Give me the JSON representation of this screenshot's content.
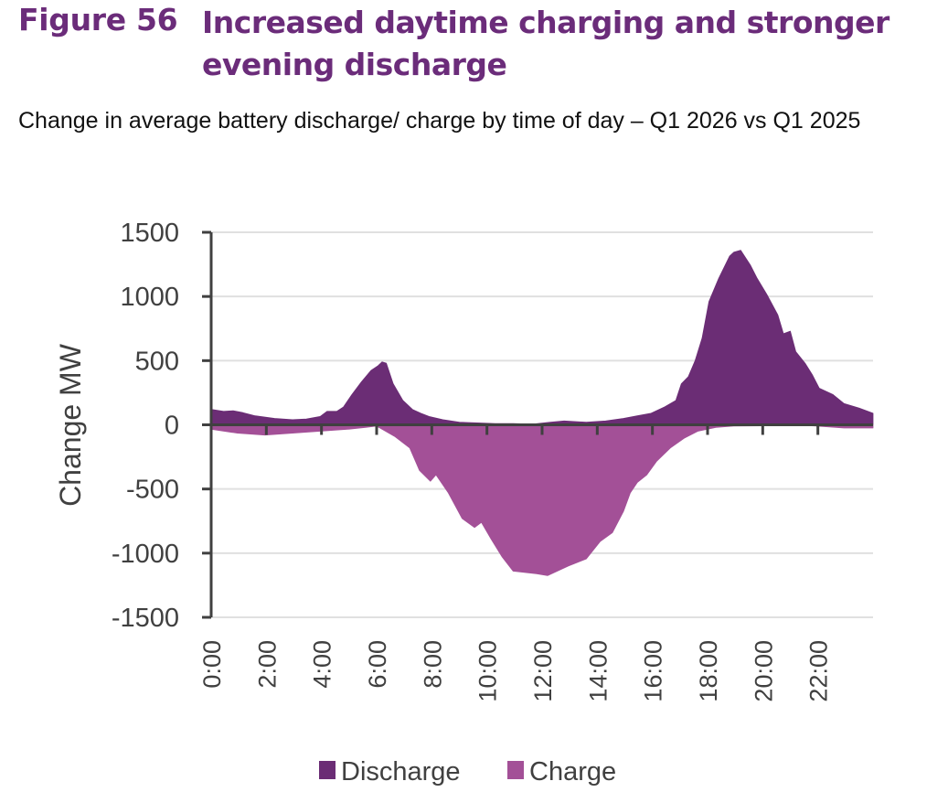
{
  "figure": {
    "number": "Figure 56",
    "title": "Increased daytime charging and stronger evening discharge",
    "subtitle": "Change in average battery discharge/ charge by time of day – Q1 2026 vs Q1 2025"
  },
  "colors": {
    "title": "#6b2c7a",
    "discharge": "#6b2d75",
    "charge": "#a35097",
    "axis": "#404040",
    "grid": "#e0e0e0"
  },
  "chart_data": {
    "type": "area",
    "title": "Change in average battery discharge/ charge by time of day – Q1 2026 vs Q1 2025",
    "xlabel": "",
    "ylabel": "Change MW",
    "xlim": [
      0,
      24
    ],
    "ylim": [
      -1500,
      1500
    ],
    "yticks": [
      1500,
      1000,
      500,
      0,
      -500,
      -1000,
      -1500
    ],
    "ytick_labels": [
      "1500",
      "1000",
      "500",
      "0",
      "-500",
      "-1000",
      "-1500"
    ],
    "xticks": [
      0,
      2,
      4,
      6,
      8,
      10,
      12,
      14,
      16,
      18,
      20,
      22
    ],
    "xtick_labels": [
      "0:00",
      "2:00",
      "4:00",
      "6:00",
      "8:00",
      "10:00",
      "12:00",
      "14:00",
      "16:00",
      "18:00",
      "20:00",
      "22:00"
    ],
    "grid": true,
    "legend": "bottom",
    "series": [
      {
        "name": "Discharge",
        "x": [
          0,
          0.45,
          0.8,
          1.15,
          1.6,
          2.3,
          2.95,
          3.45,
          3.95,
          4.2,
          4.55,
          4.8,
          5.1,
          5.45,
          5.8,
          6.05,
          6.2,
          6.35,
          6.6,
          6.95,
          7.3,
          7.6,
          7.9,
          8.4,
          9.0,
          9.65,
          10.3,
          10.95,
          11.65,
          12.3,
          12.8,
          13.6,
          14.3,
          14.95,
          15.45,
          15.95,
          16.45,
          16.85,
          17.05,
          17.3,
          17.55,
          17.8,
          18.05,
          18.4,
          18.8,
          18.95,
          19.2,
          19.55,
          19.8,
          20.15,
          20.55,
          20.75,
          21.0,
          21.2,
          21.55,
          21.8,
          22.05,
          22.55,
          22.95,
          23.5,
          24.0
        ],
        "values": [
          120,
          105,
          110,
          95,
          70,
          50,
          40,
          45,
          65,
          105,
          105,
          140,
          235,
          335,
          425,
          460,
          490,
          480,
          320,
          190,
          120,
          90,
          65,
          40,
          20,
          15,
          10,
          10,
          5,
          20,
          30,
          20,
          30,
          50,
          70,
          90,
          140,
          190,
          320,
          375,
          500,
          675,
          960,
          1140,
          1315,
          1345,
          1360,
          1245,
          1140,
          1015,
          855,
          710,
          730,
          570,
          475,
          390,
          285,
          235,
          165,
          130,
          90
        ]
      },
      {
        "name": "Charge",
        "x": [
          0,
          0.95,
          1.95,
          2.95,
          3.95,
          4.95,
          5.6,
          6.0,
          6.65,
          7.2,
          7.55,
          7.95,
          8.15,
          8.6,
          9.1,
          9.55,
          9.8,
          10.15,
          10.55,
          10.95,
          11.8,
          12.2,
          12.95,
          13.6,
          14.1,
          14.55,
          14.95,
          15.2,
          15.45,
          15.8,
          16.15,
          16.65,
          17.15,
          17.65,
          18.3,
          18.95,
          21.6,
          22.3,
          22.95,
          24.0
        ],
        "values": [
          -35,
          -65,
          -80,
          -65,
          -50,
          -35,
          -20,
          -10,
          -90,
          -180,
          -355,
          -440,
          -390,
          -530,
          -730,
          -800,
          -760,
          -890,
          -1030,
          -1140,
          -1160,
          -1175,
          -1100,
          -1045,
          -910,
          -840,
          -675,
          -530,
          -450,
          -390,
          -285,
          -180,
          -105,
          -50,
          -20,
          -10,
          -5,
          -15,
          -25,
          -25
        ]
      }
    ]
  }
}
